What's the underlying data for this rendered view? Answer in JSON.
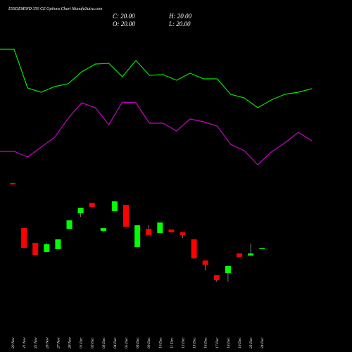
{
  "chart_data": {
    "type": "candlestick",
    "title": "ESSDEMIND 350 CE Options Chart MunafaSutra.com",
    "close_label": "C: 20.00",
    "high_label": "H: 20.00",
    "open_label": "O: 20.00",
    "low_label": "L: 20.00",
    "categories": [
      "20 Nov",
      "21 Nov",
      "25 Nov",
      "26 Nov",
      "27 Nov",
      "28 Nov",
      "01 Dec",
      "02 Dec",
      "03 Dec",
      "04 Dec",
      "05 Dec",
      "06 Dec",
      "09 Dec",
      "10 Dec",
      "11 Dec",
      "12 Dec",
      "13 Dec",
      "16 Dec",
      "17 Dec",
      "18 Dec",
      "19 Dec",
      "23 Dec",
      "24 Dec"
    ],
    "open": [
      240,
      176,
      155,
      142,
      146,
      175,
      197,
      212,
      172,
      200,
      209,
      149,
      175,
      169,
      174,
      170,
      160,
      130,
      109,
      112,
      140,
      137,
      147
    ],
    "high": [
      240,
      176,
      155,
      155,
      160,
      187,
      205,
      212,
      176,
      214,
      209,
      180,
      180,
      184,
      174,
      170,
      160,
      130,
      109,
      122,
      140,
      154,
      148
    ],
    "low": [
      238,
      148,
      138,
      142,
      146,
      175,
      192,
      206,
      170,
      200,
      178,
      149,
      166,
      169,
      170,
      162,
      132,
      116,
      100,
      100,
      135,
      137,
      147
    ],
    "close": [
      238,
      148,
      138,
      153,
      160,
      187,
      205,
      206,
      176,
      214,
      178,
      180,
      166,
      184,
      170,
      166,
      133,
      124,
      102,
      122,
      135,
      140,
      148
    ],
    "up_color": "#00ff00",
    "down_color": "#ff0000",
    "series": [
      {
        "color": "#00e600",
        "values": [
          430,
          375,
          369,
          377,
          381,
          398,
          409,
          410,
          391,
          414,
          393,
          394,
          386,
          396,
          388,
          388,
          366,
          361,
          347,
          358,
          366,
          369,
          374
        ]
      },
      {
        "color": "#cc00cc",
        "values": [
          285,
          277,
          291,
          305,
          332,
          354,
          347,
          323,
          355,
          354,
          325,
          325,
          314,
          331,
          327,
          321,
          295,
          286,
          266,
          284,
          297,
          312,
          300
        ]
      }
    ],
    "ylim": [
      0,
      500
    ]
  }
}
